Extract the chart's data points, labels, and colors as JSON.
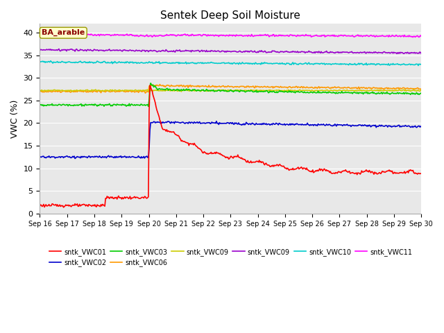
{
  "title": "Sentek Deep Soil Moisture",
  "ylabel": "VWC (%)",
  "annotation": "BA_arable",
  "ylim": [
    0,
    42
  ],
  "xlim": [
    0,
    14
  ],
  "background_color": "#e8e8e8",
  "fig_background": "#ffffff",
  "series": {
    "sntk_VWC01": {
      "color": "#ff0000"
    },
    "sntk_VWC02": {
      "color": "#0000cc"
    },
    "sntk_VWC03": {
      "color": "#00cc00"
    },
    "sntk_VWC06": {
      "color": "#ff9900"
    },
    "sntk_VWC09a": {
      "color": "#cccc00"
    },
    "sntk_VWC09b": {
      "color": "#9900cc"
    },
    "sntk_VWC10": {
      "color": "#00cccc"
    },
    "sntk_VWC11": {
      "color": "#ff00ff"
    }
  },
  "xtick_labels": [
    "Sep 16",
    "Sep 17",
    "Sep 18",
    "Sep 19",
    "Sep 20",
    "Sep 21",
    "Sep 22",
    "Sep 23",
    "Sep 24",
    "Sep 25",
    "Sep 26",
    "Sep 27",
    "Sep 28",
    "Sep 29",
    "Sep 30"
  ],
  "ytick_positions": [
    0,
    5,
    10,
    15,
    20,
    25,
    30,
    35,
    40
  ],
  "grid_color": "#ffffff",
  "line_width": 1.2,
  "rain_day": 4.0,
  "n_points": 500
}
